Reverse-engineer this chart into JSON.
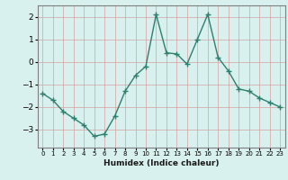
{
  "x": [
    0,
    1,
    2,
    3,
    4,
    5,
    6,
    7,
    8,
    9,
    10,
    11,
    12,
    13,
    14,
    15,
    16,
    17,
    18,
    19,
    20,
    21,
    22,
    23
  ],
  "y": [
    -1.4,
    -1.7,
    -2.2,
    -2.5,
    -2.8,
    -3.3,
    -3.2,
    -2.4,
    -1.3,
    -0.6,
    -0.2,
    2.1,
    0.4,
    0.35,
    -0.1,
    1.0,
    2.1,
    0.2,
    -0.4,
    -1.2,
    -1.3,
    -1.6,
    -1.8,
    -2.0
  ],
  "line_color": "#2e7f6e",
  "bg_color": "#d8f0ee",
  "xlabel": "Humidex (Indice chaleur)",
  "ylim": [
    -3.8,
    2.5
  ],
  "xlim": [
    -0.5,
    23.5
  ],
  "yticks": [
    -3,
    -2,
    -1,
    0,
    1,
    2
  ],
  "xticks": [
    0,
    1,
    2,
    3,
    4,
    5,
    6,
    7,
    8,
    9,
    10,
    11,
    12,
    13,
    14,
    15,
    16,
    17,
    18,
    19,
    20,
    21,
    22,
    23
  ],
  "marker": "+",
  "linewidth": 1.0,
  "markersize": 4,
  "markeredgewidth": 1.0,
  "font_size_label": 6.5,
  "font_size_tick_x": 5.0,
  "font_size_tick_y": 6.5,
  "grid_color": "#d4a0a0",
  "grid_linewidth": 0.5
}
